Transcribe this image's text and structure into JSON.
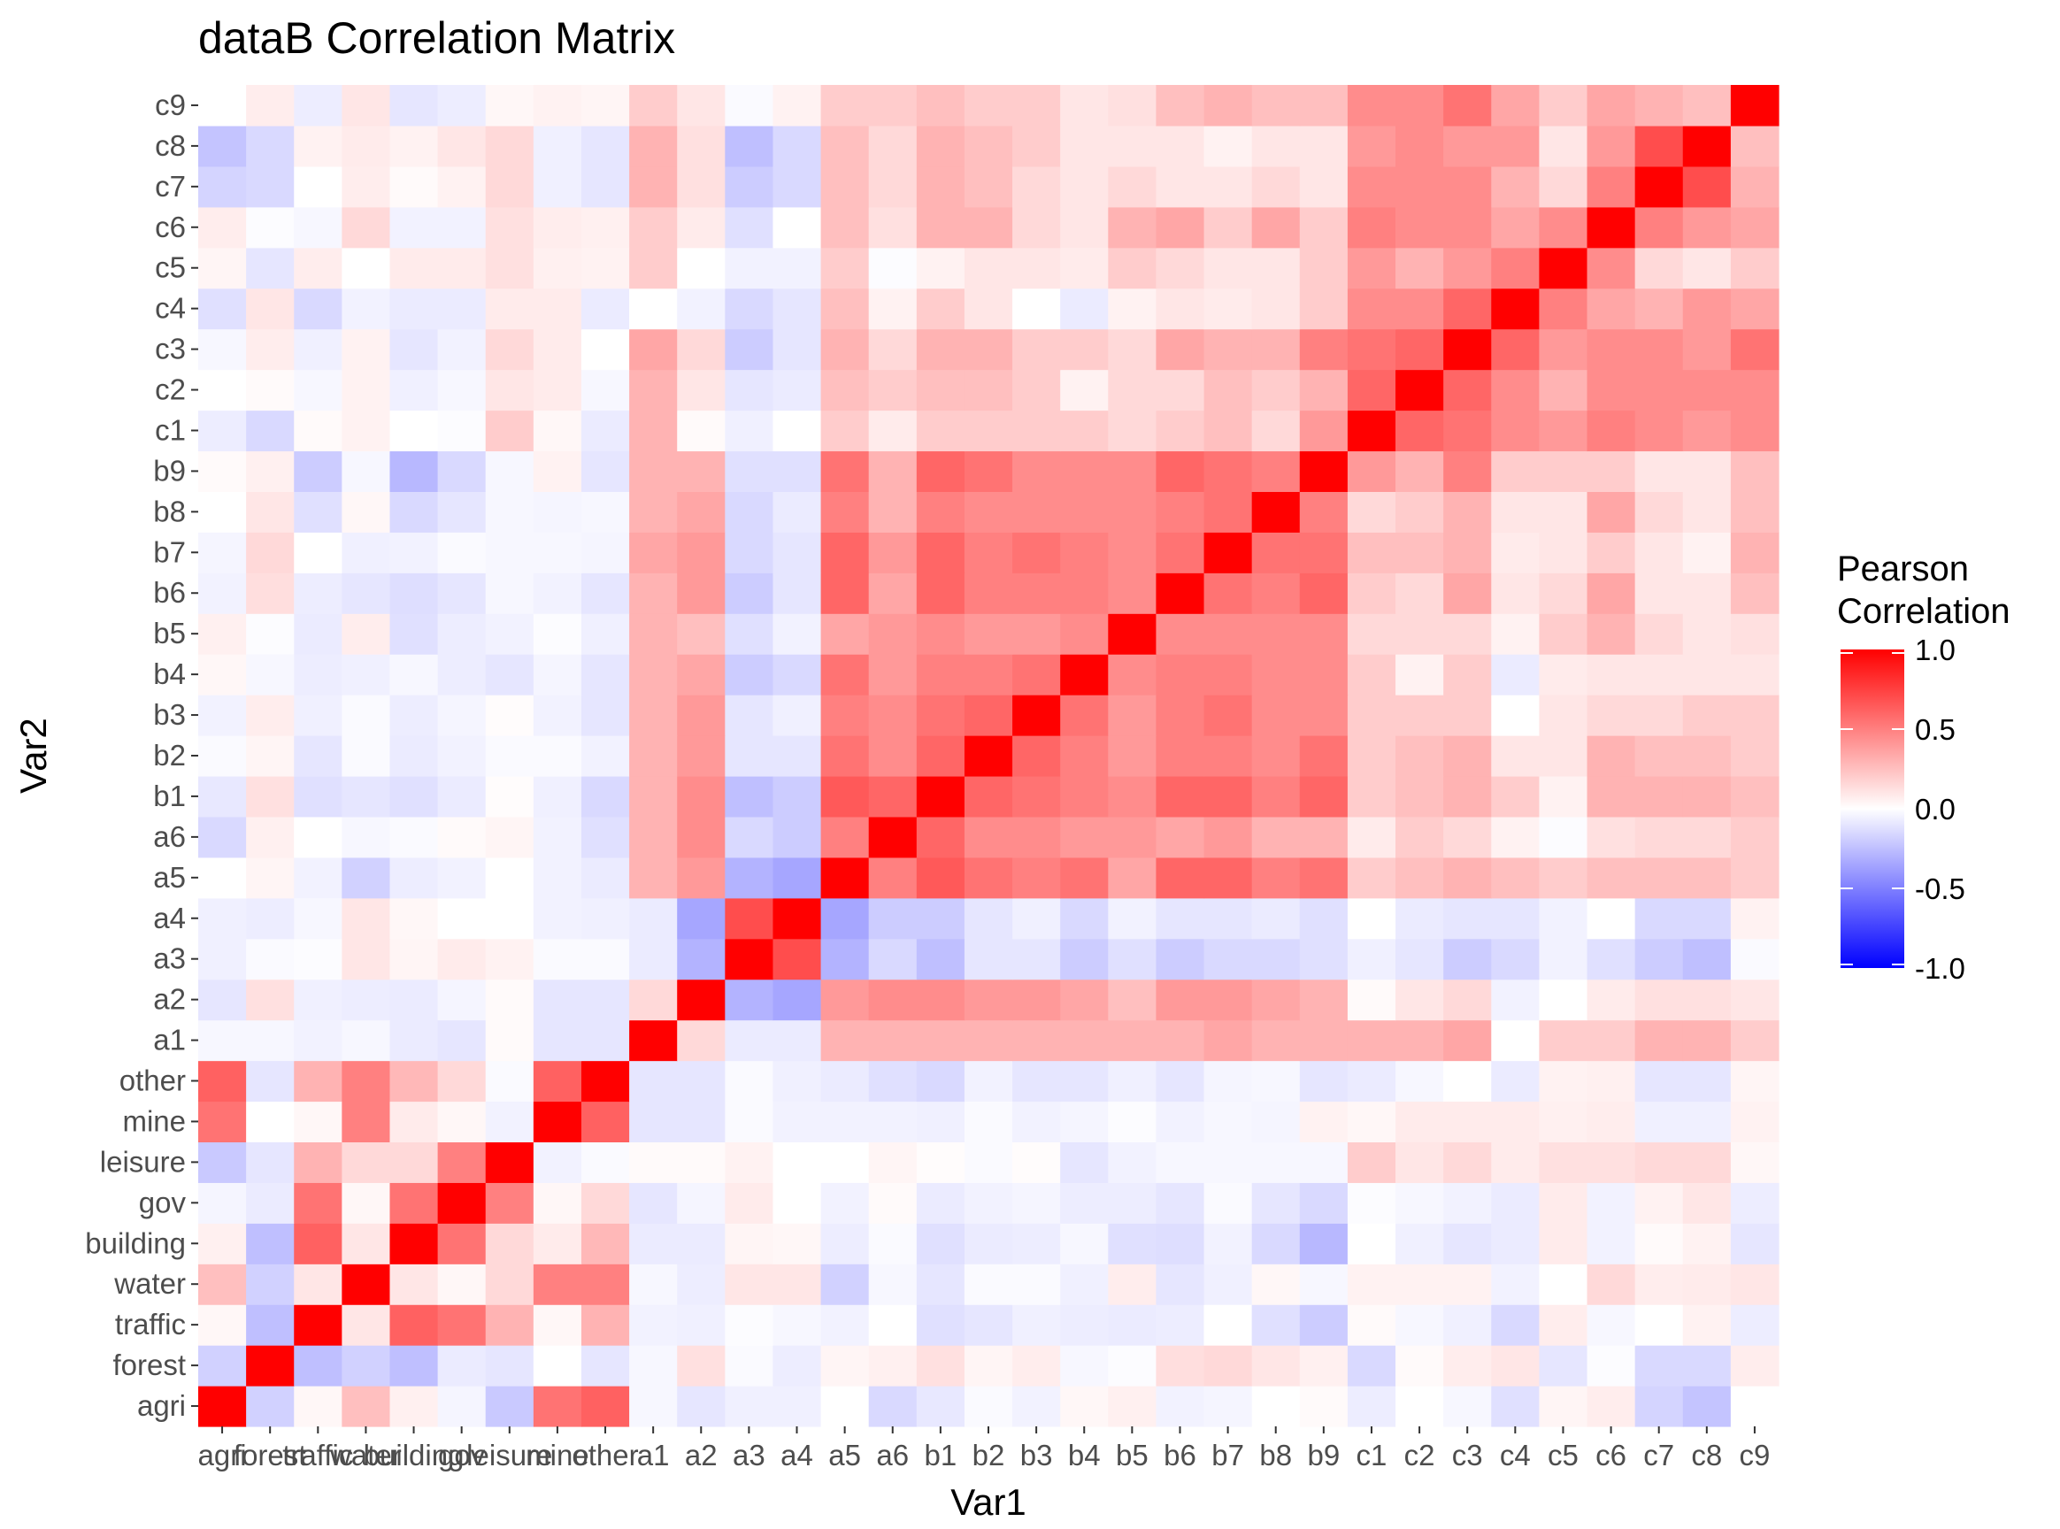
{
  "chart_data": {
    "type": "heatmap",
    "title": "dataB Correlation Matrix",
    "xlabel": "Var1",
    "ylabel": "Var2",
    "variables": [
      "agri",
      "forest",
      "traffic",
      "water",
      "building",
      "gov",
      "leisure",
      "mine",
      "other",
      "a1",
      "a2",
      "a3",
      "a4",
      "a5",
      "a6",
      "b1",
      "b2",
      "b3",
      "b4",
      "b5",
      "b6",
      "b7",
      "b8",
      "b9",
      "c1",
      "c2",
      "c3",
      "c4",
      "c5",
      "c6",
      "c7",
      "c8",
      "c9"
    ],
    "legend": {
      "title_lines": [
        "Pearson",
        "Correlation"
      ],
      "ticks": [
        1.0,
        0.5,
        0.0,
        -0.5,
        -1.0
      ],
      "tick_labels": [
        "1.0",
        "0.5",
        "0.0",
        "-0.5",
        "-1.0"
      ],
      "limits": [
        -1,
        1
      ],
      "position": "right"
    },
    "colors": {
      "low": "#0000ff",
      "mid": "#ffffff",
      "high": "#ff0000",
      "panel_bg": "#ebebeb",
      "grid": "#ffffff"
    },
    "values": [
      [
        1.0,
        -0.18,
        0.03,
        0.25,
        0.06,
        -0.04,
        -0.21,
        0.55,
        0.62,
        -0.03,
        -0.1,
        -0.06,
        -0.06,
        0.0,
        -0.15,
        -0.09,
        -0.02,
        -0.05,
        0.03,
        0.06,
        -0.05,
        -0.04,
        0.0,
        0.02,
        -0.07,
        0.0,
        -0.03,
        -0.12,
        0.04,
        0.07,
        -0.17,
        -0.23,
        0.0
      ],
      [
        -0.18,
        1.0,
        -0.25,
        -0.18,
        -0.25,
        -0.08,
        -0.1,
        0.0,
        -0.1,
        -0.03,
        0.12,
        -0.02,
        -0.07,
        0.04,
        0.06,
        0.12,
        0.04,
        0.07,
        -0.03,
        -0.01,
        0.13,
        0.15,
        0.1,
        0.06,
        -0.15,
        0.02,
        0.07,
        0.1,
        -0.1,
        -0.01,
        -0.15,
        -0.15,
        0.07
      ],
      [
        0.03,
        -0.25,
        1.0,
        0.1,
        0.62,
        0.55,
        0.3,
        0.03,
        0.3,
        -0.05,
        -0.06,
        -0.01,
        -0.03,
        -0.05,
        0.0,
        -0.12,
        -0.1,
        -0.06,
        -0.07,
        -0.08,
        -0.07,
        0.0,
        -0.12,
        -0.2,
        0.02,
        -0.03,
        -0.06,
        -0.15,
        0.07,
        -0.03,
        0.0,
        0.05,
        -0.07
      ],
      [
        0.25,
        -0.18,
        0.1,
        1.0,
        0.1,
        0.03,
        0.15,
        0.5,
        0.5,
        -0.03,
        -0.07,
        0.1,
        0.1,
        -0.18,
        -0.03,
        -0.1,
        -0.02,
        -0.02,
        -0.06,
        0.07,
        -0.1,
        -0.06,
        0.03,
        -0.03,
        0.05,
        0.05,
        0.05,
        -0.05,
        0.0,
        0.15,
        0.07,
        0.08,
        0.1
      ],
      [
        0.06,
        -0.25,
        0.62,
        0.1,
        1.0,
        0.55,
        0.15,
        0.08,
        0.28,
        -0.08,
        -0.08,
        0.04,
        0.03,
        -0.07,
        -0.02,
        -0.12,
        -0.08,
        -0.07,
        -0.03,
        -0.12,
        -0.13,
        -0.05,
        -0.15,
        -0.28,
        0.0,
        -0.06,
        -0.1,
        -0.08,
        0.08,
        -0.05,
        0.02,
        0.05,
        -0.1
      ],
      [
        -0.04,
        -0.08,
        0.55,
        0.03,
        0.55,
        1.0,
        0.5,
        0.03,
        0.15,
        -0.1,
        -0.04,
        0.08,
        0.0,
        -0.05,
        0.02,
        -0.08,
        -0.05,
        -0.04,
        -0.07,
        -0.07,
        -0.1,
        -0.02,
        -0.1,
        -0.15,
        -0.01,
        -0.03,
        -0.05,
        -0.08,
        0.08,
        -0.05,
        0.05,
        0.1,
        -0.07
      ],
      [
        -0.21,
        -0.1,
        0.3,
        0.15,
        0.15,
        0.5,
        1.0,
        -0.05,
        -0.02,
        0.02,
        0.02,
        0.05,
        0.0,
        0.0,
        0.04,
        0.01,
        -0.02,
        0.01,
        -0.1,
        -0.05,
        -0.03,
        -0.03,
        -0.03,
        -0.03,
        0.2,
        0.1,
        0.15,
        0.08,
        0.12,
        0.12,
        0.15,
        0.15,
        0.03
      ],
      [
        0.55,
        0.0,
        0.03,
        0.5,
        0.08,
        0.03,
        -0.05,
        1.0,
        0.62,
        -0.1,
        -0.1,
        -0.02,
        -0.05,
        -0.05,
        -0.05,
        -0.06,
        -0.02,
        -0.05,
        -0.04,
        -0.01,
        -0.05,
        -0.03,
        -0.04,
        0.05,
        0.03,
        0.08,
        0.08,
        0.08,
        0.06,
        0.07,
        -0.06,
        -0.06,
        0.05
      ],
      [
        0.62,
        -0.1,
        0.3,
        0.5,
        0.28,
        0.15,
        -0.02,
        0.62,
        1.0,
        -0.1,
        -0.1,
        -0.02,
        -0.06,
        -0.08,
        -0.12,
        -0.15,
        -0.05,
        -0.1,
        -0.1,
        -0.06,
        -0.1,
        -0.04,
        -0.03,
        -0.1,
        -0.08,
        -0.03,
        0.0,
        -0.08,
        0.05,
        0.06,
        -0.1,
        -0.1,
        0.04
      ],
      [
        -0.03,
        -0.03,
        -0.05,
        -0.03,
        -0.08,
        -0.1,
        0.02,
        -0.1,
        -0.1,
        1.0,
        0.15,
        -0.08,
        -0.08,
        0.3,
        0.3,
        0.3,
        0.3,
        0.3,
        0.3,
        0.3,
        0.3,
        0.35,
        0.3,
        0.3,
        0.3,
        0.3,
        0.35,
        0.0,
        0.2,
        0.2,
        0.3,
        0.3,
        0.2
      ],
      [
        -0.1,
        0.12,
        -0.06,
        -0.07,
        -0.08,
        -0.04,
        0.02,
        -0.1,
        -0.1,
        0.15,
        1.0,
        -0.3,
        -0.35,
        0.4,
        0.45,
        0.45,
        0.4,
        0.4,
        0.35,
        0.25,
        0.4,
        0.4,
        0.35,
        0.3,
        0.02,
        0.1,
        0.15,
        -0.05,
        0.0,
        0.08,
        0.12,
        0.12,
        0.1
      ],
      [
        -0.06,
        -0.02,
        -0.01,
        0.1,
        0.04,
        0.08,
        0.05,
        -0.02,
        -0.02,
        -0.08,
        -0.3,
        1.0,
        0.7,
        -0.3,
        -0.15,
        -0.25,
        -0.1,
        -0.1,
        -0.2,
        -0.12,
        -0.2,
        -0.15,
        -0.15,
        -0.12,
        -0.06,
        -0.1,
        -0.2,
        -0.15,
        -0.05,
        -0.12,
        -0.2,
        -0.25,
        -0.02
      ],
      [
        -0.06,
        -0.07,
        -0.03,
        0.1,
        0.03,
        0.0,
        0.0,
        -0.05,
        -0.06,
        -0.08,
        -0.35,
        0.7,
        1.0,
        -0.35,
        -0.2,
        -0.2,
        -0.1,
        -0.06,
        -0.15,
        -0.05,
        -0.1,
        -0.1,
        -0.08,
        -0.12,
        0.0,
        -0.08,
        -0.1,
        -0.1,
        -0.05,
        0.0,
        -0.15,
        -0.15,
        0.05
      ],
      [
        0.0,
        0.04,
        -0.05,
        -0.18,
        -0.07,
        -0.05,
        0.0,
        -0.05,
        -0.08,
        0.3,
        0.4,
        -0.3,
        -0.35,
        1.0,
        0.5,
        0.65,
        0.55,
        0.5,
        0.55,
        0.35,
        0.6,
        0.6,
        0.5,
        0.55,
        0.2,
        0.25,
        0.3,
        0.25,
        0.2,
        0.25,
        0.25,
        0.25,
        0.2
      ],
      [
        -0.15,
        0.06,
        0.0,
        -0.03,
        -0.02,
        0.02,
        0.04,
        -0.05,
        -0.12,
        0.3,
        0.45,
        -0.15,
        -0.2,
        0.5,
        1.0,
        0.6,
        0.45,
        0.45,
        0.4,
        0.4,
        0.35,
        0.4,
        0.3,
        0.3,
        0.08,
        0.2,
        0.15,
        0.05,
        -0.01,
        0.12,
        0.15,
        0.15,
        0.2
      ],
      [
        -0.09,
        0.12,
        -0.12,
        -0.1,
        -0.12,
        -0.08,
        0.01,
        -0.06,
        -0.15,
        0.3,
        0.45,
        -0.25,
        -0.2,
        0.65,
        0.6,
        1.0,
        0.6,
        0.55,
        0.5,
        0.45,
        0.6,
        0.6,
        0.5,
        0.6,
        0.2,
        0.25,
        0.3,
        0.2,
        0.05,
        0.3,
        0.3,
        0.3,
        0.25
      ],
      [
        -0.02,
        0.04,
        -0.1,
        -0.02,
        -0.08,
        -0.05,
        -0.02,
        -0.02,
        -0.05,
        0.3,
        0.4,
        -0.1,
        -0.1,
        0.55,
        0.45,
        0.6,
        1.0,
        0.6,
        0.5,
        0.4,
        0.5,
        0.5,
        0.45,
        0.55,
        0.2,
        0.25,
        0.3,
        0.1,
        0.1,
        0.3,
        0.25,
        0.25,
        0.2
      ],
      [
        -0.05,
        0.07,
        -0.06,
        -0.02,
        -0.07,
        -0.04,
        0.01,
        -0.05,
        -0.1,
        0.3,
        0.4,
        -0.1,
        -0.06,
        0.5,
        0.45,
        0.55,
        0.6,
        1.0,
        0.55,
        0.4,
        0.5,
        0.55,
        0.45,
        0.45,
        0.2,
        0.2,
        0.2,
        0.0,
        0.1,
        0.15,
        0.15,
        0.2,
        0.2
      ],
      [
        0.03,
        -0.03,
        -0.07,
        -0.06,
        -0.03,
        -0.07,
        -0.1,
        -0.04,
        -0.1,
        0.3,
        0.35,
        -0.2,
        -0.15,
        0.55,
        0.4,
        0.5,
        0.5,
        0.55,
        1.0,
        0.45,
        0.5,
        0.5,
        0.45,
        0.45,
        0.2,
        0.05,
        0.2,
        -0.08,
        0.08,
        0.1,
        0.1,
        0.1,
        0.1
      ],
      [
        0.06,
        -0.01,
        -0.08,
        0.07,
        -0.12,
        -0.07,
        -0.05,
        -0.01,
        -0.06,
        0.3,
        0.25,
        -0.12,
        -0.05,
        0.35,
        0.4,
        0.45,
        0.4,
        0.4,
        0.45,
        1.0,
        0.45,
        0.45,
        0.45,
        0.45,
        0.15,
        0.15,
        0.15,
        0.05,
        0.2,
        0.3,
        0.15,
        0.1,
        0.12
      ],
      [
        -0.05,
        0.13,
        -0.07,
        -0.1,
        -0.13,
        -0.1,
        -0.03,
        -0.05,
        -0.1,
        0.3,
        0.4,
        -0.2,
        -0.1,
        0.6,
        0.35,
        0.6,
        0.5,
        0.5,
        0.5,
        0.45,
        1.0,
        0.55,
        0.5,
        0.6,
        0.2,
        0.15,
        0.35,
        0.1,
        0.15,
        0.35,
        0.1,
        0.1,
        0.25
      ],
      [
        -0.04,
        0.15,
        0.0,
        -0.06,
        -0.05,
        -0.02,
        -0.03,
        -0.03,
        -0.04,
        0.35,
        0.4,
        -0.15,
        -0.1,
        0.6,
        0.4,
        0.6,
        0.5,
        0.55,
        0.5,
        0.45,
        0.55,
        1.0,
        0.55,
        0.55,
        0.25,
        0.25,
        0.3,
        0.08,
        0.1,
        0.2,
        0.1,
        0.05,
        0.3
      ],
      [
        0.0,
        0.1,
        -0.12,
        0.03,
        -0.15,
        -0.1,
        -0.03,
        -0.04,
        -0.03,
        0.3,
        0.35,
        -0.15,
        -0.08,
        0.5,
        0.3,
        0.5,
        0.45,
        0.45,
        0.45,
        0.45,
        0.5,
        0.55,
        1.0,
        0.5,
        0.15,
        0.2,
        0.3,
        0.1,
        0.1,
        0.35,
        0.15,
        0.1,
        0.25
      ],
      [
        0.02,
        0.06,
        -0.2,
        -0.03,
        -0.28,
        -0.15,
        -0.03,
        0.05,
        -0.1,
        0.3,
        0.3,
        -0.12,
        -0.12,
        0.55,
        0.3,
        0.6,
        0.55,
        0.45,
        0.45,
        0.45,
        0.6,
        0.55,
        0.5,
        1.0,
        0.4,
        0.3,
        0.5,
        0.2,
        0.2,
        0.2,
        0.1,
        0.1,
        0.25
      ],
      [
        -0.07,
        -0.15,
        0.02,
        0.05,
        0.0,
        -0.01,
        0.2,
        0.03,
        -0.08,
        0.3,
        0.02,
        -0.06,
        0.0,
        0.2,
        0.08,
        0.2,
        0.2,
        0.2,
        0.2,
        0.15,
        0.2,
        0.25,
        0.15,
        0.4,
        1.0,
        0.6,
        0.55,
        0.45,
        0.4,
        0.5,
        0.45,
        0.4,
        0.45
      ],
      [
        0.0,
        0.02,
        -0.03,
        0.05,
        -0.06,
        -0.03,
        0.1,
        0.08,
        -0.03,
        0.3,
        0.1,
        -0.1,
        -0.08,
        0.25,
        0.2,
        0.25,
        0.25,
        0.2,
        0.05,
        0.15,
        0.15,
        0.25,
        0.2,
        0.3,
        0.6,
        1.0,
        0.6,
        0.45,
        0.3,
        0.45,
        0.45,
        0.45,
        0.45
      ],
      [
        -0.03,
        0.07,
        -0.06,
        0.05,
        -0.1,
        -0.05,
        0.15,
        0.08,
        0.0,
        0.35,
        0.15,
        -0.2,
        -0.1,
        0.3,
        0.15,
        0.3,
        0.3,
        0.2,
        0.2,
        0.15,
        0.35,
        0.3,
        0.3,
        0.5,
        0.55,
        0.6,
        1.0,
        0.6,
        0.4,
        0.45,
        0.45,
        0.4,
        0.55
      ],
      [
        -0.12,
        0.1,
        -0.15,
        -0.05,
        -0.08,
        -0.08,
        0.08,
        0.08,
        -0.08,
        0.0,
        -0.05,
        -0.15,
        -0.1,
        0.25,
        0.05,
        0.2,
        0.1,
        0.0,
        -0.08,
        0.05,
        0.1,
        0.08,
        0.1,
        0.2,
        0.45,
        0.45,
        0.6,
        1.0,
        0.5,
        0.35,
        0.3,
        0.4,
        0.35
      ],
      [
        0.04,
        -0.1,
        0.07,
        0.0,
        0.08,
        0.08,
        0.12,
        0.06,
        0.05,
        0.2,
        0.0,
        -0.05,
        -0.05,
        0.2,
        -0.01,
        0.05,
        0.1,
        0.1,
        0.08,
        0.2,
        0.15,
        0.1,
        0.1,
        0.2,
        0.4,
        0.3,
        0.4,
        0.5,
        1.0,
        0.45,
        0.15,
        0.1,
        0.2
      ],
      [
        0.07,
        -0.01,
        -0.03,
        0.15,
        -0.05,
        -0.05,
        0.12,
        0.07,
        0.06,
        0.2,
        0.08,
        -0.12,
        0.0,
        0.25,
        0.12,
        0.3,
        0.3,
        0.15,
        0.1,
        0.3,
        0.35,
        0.2,
        0.35,
        0.2,
        0.5,
        0.45,
        0.45,
        0.35,
        0.45,
        1.0,
        0.5,
        0.4,
        0.35
      ],
      [
        -0.17,
        -0.15,
        0.0,
        0.07,
        0.02,
        0.05,
        0.15,
        -0.06,
        -0.1,
        0.3,
        0.12,
        -0.2,
        -0.15,
        0.25,
        0.15,
        0.3,
        0.25,
        0.15,
        0.1,
        0.15,
        0.1,
        0.1,
        0.15,
        0.1,
        0.45,
        0.45,
        0.45,
        0.3,
        0.15,
        0.5,
        1.0,
        0.7,
        0.3
      ],
      [
        -0.23,
        -0.15,
        0.05,
        0.08,
        0.05,
        0.1,
        0.15,
        -0.06,
        -0.1,
        0.3,
        0.12,
        -0.25,
        -0.15,
        0.25,
        0.15,
        0.3,
        0.25,
        0.2,
        0.1,
        0.1,
        0.1,
        0.05,
        0.1,
        0.1,
        0.4,
        0.45,
        0.4,
        0.4,
        0.1,
        0.4,
        0.7,
        1.0,
        0.25
      ],
      [
        0.0,
        0.07,
        -0.07,
        0.1,
        -0.1,
        -0.07,
        0.03,
        0.05,
        0.04,
        0.2,
        0.1,
        -0.02,
        0.05,
        0.2,
        0.2,
        0.25,
        0.2,
        0.2,
        0.1,
        0.12,
        0.25,
        0.3,
        0.25,
        0.25,
        0.45,
        0.45,
        0.55,
        0.35,
        0.2,
        0.35,
        0.3,
        0.25,
        1.0
      ]
    ]
  }
}
